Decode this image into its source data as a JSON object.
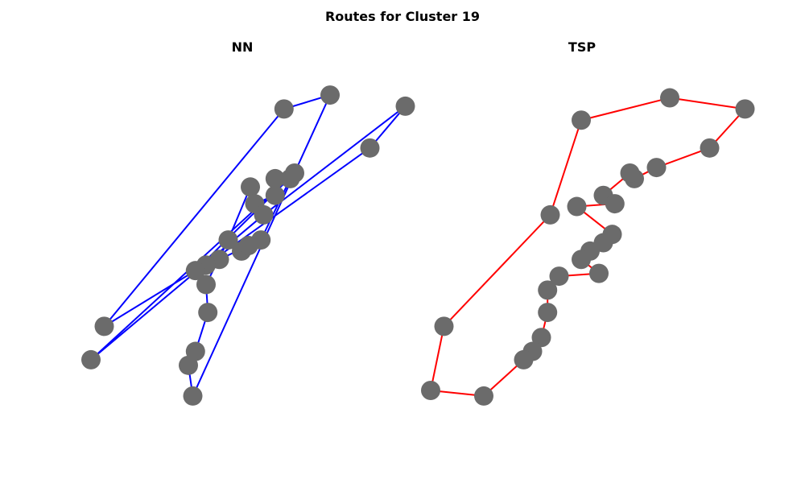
{
  "figure": {
    "title": "Routes for Cluster 19"
  },
  "chart_data": [
    {
      "type": "line",
      "subtitle": "NN",
      "route_color": "#0000ff",
      "node_color": "#6b6b6b",
      "points": [
        [
          -0.55,
          1.8
        ],
        [
          1.48,
          5.7
        ],
        [
          2.0,
          5.95
        ],
        [
          0.45,
          0.55
        ],
        [
          0.4,
          1.1
        ],
        [
          0.48,
          1.35
        ],
        [
          0.62,
          2.05
        ],
        [
          0.6,
          2.55
        ],
        [
          0.85,
          3.35
        ],
        [
          1.1,
          4.3
        ],
        [
          1.15,
          4.0
        ],
        [
          1.38,
          4.15
        ],
        [
          1.38,
          4.45
        ],
        [
          1.55,
          4.45
        ],
        [
          1.22,
          3.35
        ],
        [
          1.0,
          3.15
        ],
        [
          1.08,
          3.25
        ],
        [
          0.75,
          3.0
        ],
        [
          0.6,
          2.9
        ],
        [
          2.45,
          5.0
        ],
        [
          2.85,
          5.75
        ],
        [
          1.25,
          3.8
        ],
        [
          -0.7,
          1.2
        ],
        [
          1.6,
          4.55
        ],
        [
          0.48,
          2.8
        ]
      ]
    },
    {
      "type": "line",
      "subtitle": "TSP",
      "route_color": "#ff0000",
      "node_color": "#6b6b6b",
      "points": [
        [
          1.0,
          5.5
        ],
        [
          2.0,
          5.9
        ],
        [
          2.85,
          5.7
        ],
        [
          2.45,
          5.0
        ],
        [
          1.85,
          4.65
        ],
        [
          1.6,
          4.45
        ],
        [
          1.55,
          4.55
        ],
        [
          1.25,
          4.15
        ],
        [
          1.38,
          4.0
        ],
        [
          0.95,
          3.95
        ],
        [
          1.35,
          3.45
        ],
        [
          1.25,
          3.3
        ],
        [
          1.1,
          3.15
        ],
        [
          1.0,
          3.0
        ],
        [
          1.2,
          2.75
        ],
        [
          0.75,
          2.7
        ],
        [
          0.62,
          2.45
        ],
        [
          0.62,
          2.05
        ],
        [
          0.55,
          1.6
        ],
        [
          0.45,
          1.35
        ],
        [
          0.35,
          1.2
        ],
        [
          -0.1,
          0.55
        ],
        [
          -0.7,
          0.65
        ],
        [
          -0.55,
          1.8
        ],
        [
          0.65,
          3.8
        ]
      ]
    }
  ]
}
